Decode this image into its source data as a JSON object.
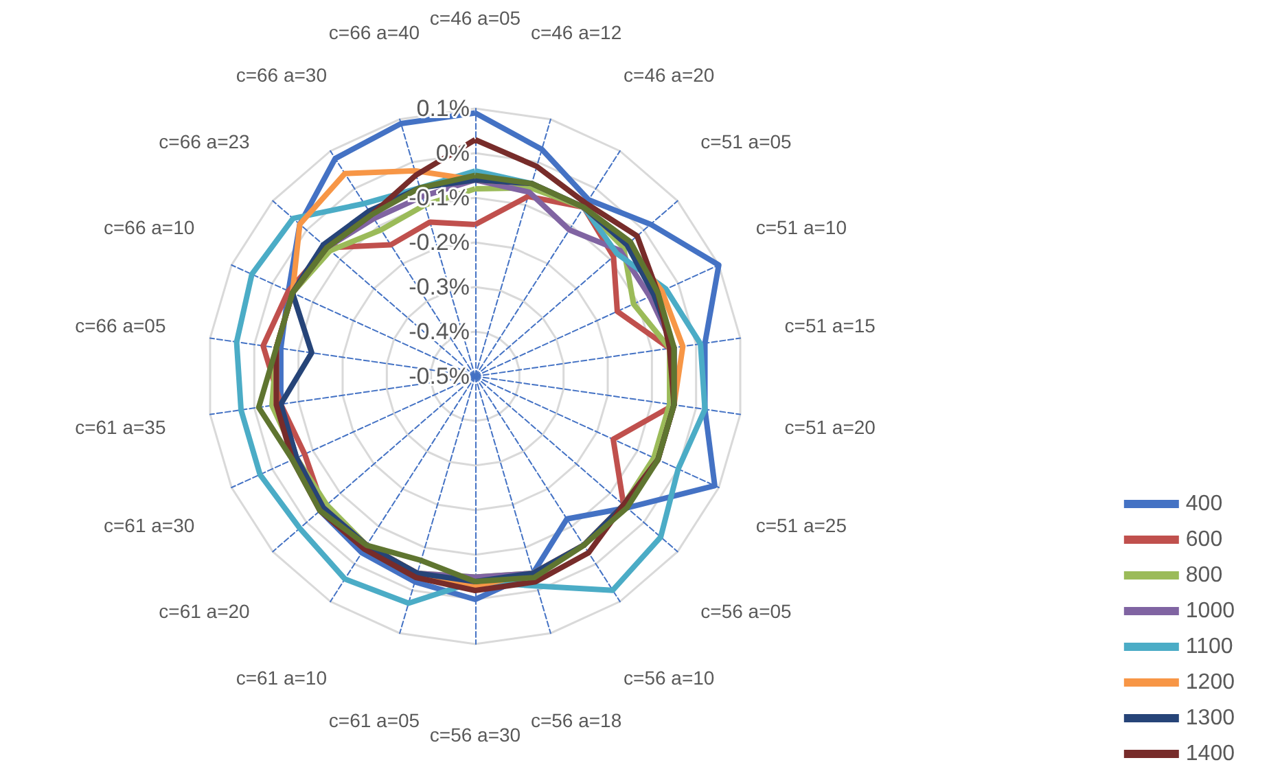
{
  "chart_data": {
    "type": "radar",
    "categories": [
      "c=46 a=05",
      "c=46 a=12",
      "c=46 a=20",
      "c=51 a=05",
      "c=51 a=10",
      "c=51 a=15",
      "c=51 a=20",
      "c=51 a=25",
      "c=56 a=05",
      "c=56 a=10",
      "c=56 a=18",
      "c=56 a=30",
      "c=61 a=05",
      "c=61 a=10",
      "c=61 a=20",
      "c=61 a=30",
      "c=61 a=35",
      "c=66 a=05",
      "c=66 a=10",
      "c=66 a=23",
      "c=66 a=30",
      "c=66 a=40"
    ],
    "ylim": [
      -0.5,
      0.1
    ],
    "yticks": [
      {
        "value": -0.5,
        "label": "-0.5%"
      },
      {
        "value": -0.4,
        "label": "-0.4%"
      },
      {
        "value": -0.3,
        "label": "-0.3%"
      },
      {
        "value": -0.2,
        "label": "-0.2%"
      },
      {
        "value": -0.1,
        "label": "-0.1%"
      },
      {
        "value": 0,
        "label": "0%"
      },
      {
        "value": 0.1,
        "label": "0.1%"
      }
    ],
    "grid": true,
    "legend": "bottom right",
    "series": [
      {
        "name": "400",
        "color": "#4472c4",
        "values": [
          0.09,
          0.03,
          -0.03,
          0.02,
          0.1,
          0.02,
          0.02,
          0.09,
          -0.05,
          -0.12,
          -0.04,
          0.0,
          -0.02,
          -0.03,
          -0.04,
          -0.06,
          -0.06,
          -0.06,
          -0.04,
          0.02,
          0.08,
          0.09
        ]
      },
      {
        "name": "600",
        "color": "#c0504d",
        "values": [
          -0.16,
          -0.08,
          -0.05,
          -0.09,
          -0.15,
          -0.06,
          -0.05,
          -0.16,
          -0.06,
          -0.05,
          -0.04,
          -0.04,
          -0.04,
          -0.05,
          -0.05,
          -0.08,
          -0.06,
          -0.02,
          -0.04,
          -0.06,
          -0.15,
          -0.14
        ]
      },
      {
        "name": "800",
        "color": "#9bbb59",
        "values": [
          -0.08,
          -0.06,
          -0.05,
          -0.06,
          -0.11,
          -0.06,
          -0.06,
          -0.06,
          -0.06,
          -0.05,
          -0.04,
          -0.05,
          -0.04,
          -0.05,
          -0.06,
          -0.06,
          -0.04,
          -0.05,
          -0.05,
          -0.07,
          -0.11,
          -0.1
        ]
      },
      {
        "name": "1000",
        "color": "#8064a2",
        "values": [
          -0.06,
          -0.07,
          -0.11,
          -0.07,
          -0.07,
          -0.05,
          -0.05,
          -0.05,
          -0.06,
          -0.05,
          -0.04,
          -0.05,
          -0.04,
          -0.05,
          -0.05,
          -0.06,
          -0.05,
          -0.05,
          -0.05,
          -0.06,
          -0.08,
          -0.08
        ]
      },
      {
        "name": "1100",
        "color": "#4bacc6",
        "values": [
          -0.04,
          -0.05,
          -0.05,
          -0.08,
          -0.03,
          0.01,
          0.02,
          0.0,
          0.05,
          0.07,
          -0.01,
          -0.04,
          0.03,
          0.04,
          0.02,
          0.03,
          0.03,
          0.04,
          0.05,
          0.04,
          -0.04,
          -0.06
        ]
      },
      {
        "name": "1200",
        "color": "#f79646",
        "values": [
          -0.06,
          -0.05,
          -0.05,
          -0.05,
          -0.04,
          -0.03,
          -0.05,
          -0.05,
          -0.06,
          -0.05,
          -0.04,
          -0.03,
          -0.04,
          -0.05,
          -0.05,
          -0.06,
          -0.05,
          -0.05,
          -0.05,
          0.02,
          0.04,
          -0.02
        ]
      },
      {
        "name": "1300",
        "color": "#264478",
        "values": [
          -0.06,
          -0.05,
          -0.05,
          -0.05,
          -0.06,
          -0.05,
          -0.05,
          -0.05,
          -0.06,
          -0.05,
          -0.04,
          -0.04,
          -0.04,
          -0.05,
          -0.05,
          -0.06,
          -0.06,
          -0.13,
          -0.05,
          -0.05,
          -0.06,
          -0.06
        ]
      },
      {
        "name": "1400",
        "color": "#772c2a",
        "values": [
          0.03,
          -0.01,
          -0.04,
          -0.02,
          -0.05,
          -0.06,
          -0.05,
          -0.05,
          -0.06,
          -0.03,
          -0.02,
          -0.02,
          -0.03,
          -0.04,
          -0.04,
          -0.05,
          -0.05,
          -0.05,
          -0.05,
          -0.06,
          -0.07,
          -0.03
        ]
      },
      {
        "color": "#5f7530",
        "values": [
          -0.05,
          -0.05,
          -0.05,
          -0.04,
          -0.05,
          -0.05,
          -0.05,
          -0.05,
          -0.05,
          -0.05,
          -0.03,
          -0.04,
          -0.07,
          -0.05,
          -0.04,
          -0.05,
          -0.01,
          -0.05,
          -0.05,
          -0.06,
          -0.07,
          -0.06
        ]
      }
    ]
  }
}
